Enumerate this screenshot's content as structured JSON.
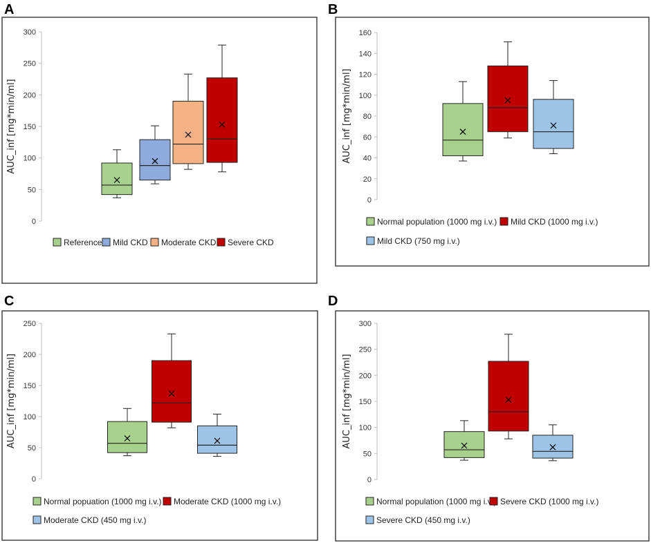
{
  "colors": {
    "green": "#a9d18e",
    "blue": "#8faadc",
    "light_blue": "#9dc3e6",
    "orange": "#f4b183",
    "red": "#c00000",
    "stroke": "#222222",
    "frame": "#444444"
  },
  "chart_data": [
    {
      "panel": "A",
      "type": "box",
      "ylabel": "AUC_inf [mg*min/ml]",
      "ylim": [
        0,
        300
      ],
      "yticks": [
        0,
        50,
        100,
        150,
        200,
        250,
        300
      ],
      "legend_rows": [
        [
          0,
          1,
          2,
          3
        ]
      ],
      "series": [
        {
          "name": "Reference",
          "color": "green",
          "min": 37,
          "q1": 42,
          "median": 57,
          "q3": 92,
          "max": 113,
          "mean": 65
        },
        {
          "name": "Mild CKD",
          "color": "blue",
          "min": 59,
          "q1": 65,
          "median": 88,
          "q3": 129,
          "max": 151,
          "mean": 95
        },
        {
          "name": "Moderate CKD",
          "color": "orange",
          "min": 82,
          "q1": 91,
          "median": 122,
          "q3": 190,
          "max": 233,
          "mean": 137
        },
        {
          "name": "Severe CKD",
          "color": "red",
          "min": 78,
          "q1": 93,
          "median": 130,
          "q3": 227,
          "max": 279,
          "mean": 153
        }
      ]
    },
    {
      "panel": "B",
      "type": "box",
      "ylabel": "AUC_inf [mg*min/ml]",
      "ylim": [
        0,
        160
      ],
      "yticks": [
        0,
        20,
        40,
        60,
        80,
        100,
        120,
        140,
        160
      ],
      "legend_rows": [
        [
          0,
          1
        ],
        [
          2
        ]
      ],
      "series": [
        {
          "name": "Normal population (1000 mg i.v.)",
          "color": "green",
          "min": 37,
          "q1": 42,
          "median": 57,
          "q3": 92,
          "max": 113,
          "mean": 65
        },
        {
          "name": "Mild CKD (1000 mg i.v.)",
          "color": "red",
          "min": 59,
          "q1": 65,
          "median": 88,
          "q3": 128,
          "max": 151,
          "mean": 95
        },
        {
          "name": "Mild CKD (750 mg i.v.)",
          "color": "light_blue",
          "min": 44,
          "q1": 49,
          "median": 65,
          "q3": 96,
          "max": 114,
          "mean": 71
        }
      ]
    },
    {
      "panel": "C",
      "type": "box",
      "ylabel": "AUC_inf [mg*min/ml]",
      "ylim": [
        0,
        250
      ],
      "yticks": [
        0,
        50,
        100,
        150,
        200,
        250
      ],
      "legend_rows": [
        [
          0,
          1
        ],
        [
          2
        ]
      ],
      "series": [
        {
          "name": "Normal popuation (1000 mg i.v.)",
          "color": "green",
          "min": 37,
          "q1": 42,
          "median": 57,
          "q3": 92,
          "max": 113,
          "mean": 65
        },
        {
          "name": "Moderate CKD (1000 mg i.v.)",
          "color": "red",
          "min": 82,
          "q1": 91,
          "median": 122,
          "q3": 190,
          "max": 233,
          "mean": 137
        },
        {
          "name": "Moderate CKD (450 mg i.v.)",
          "color": "light_blue",
          "min": 36,
          "q1": 41,
          "median": 54,
          "q3": 85,
          "max": 104,
          "mean": 61
        }
      ]
    },
    {
      "panel": "D",
      "type": "box",
      "ylabel": "AUC_inf [mg*min/ml]",
      "ylim": [
        0,
        300
      ],
      "yticks": [
        0,
        50,
        100,
        150,
        200,
        250,
        300
      ],
      "legend_rows": [
        [
          0,
          1
        ],
        [
          2
        ]
      ],
      "series": [
        {
          "name": "Normal population (1000 mg i.v.)",
          "color": "green",
          "min": 37,
          "q1": 42,
          "median": 57,
          "q3": 92,
          "max": 113,
          "mean": 65
        },
        {
          "name": "Severe CKD (1000 mg i.v.)",
          "color": "red",
          "min": 78,
          "q1": 93,
          "median": 130,
          "q3": 227,
          "max": 279,
          "mean": 153
        },
        {
          "name": "Severe CKD (450 mg i.v.)",
          "color": "light_blue",
          "min": 36,
          "q1": 41,
          "median": 54,
          "q3": 85,
          "max": 105,
          "mean": 62
        }
      ]
    }
  ]
}
